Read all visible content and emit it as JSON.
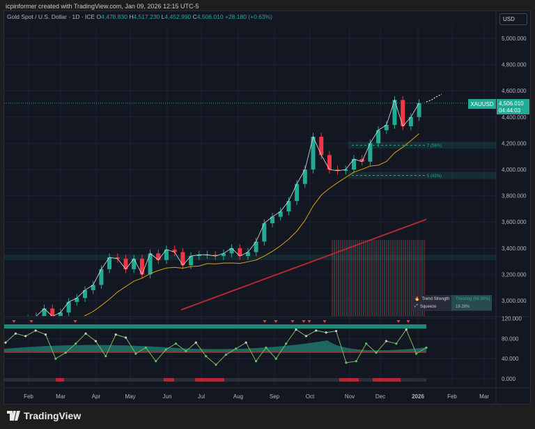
{
  "credit": "icpinformer created with TradingView.com, Jan 09, 2026 12:15 UTC-5",
  "legend": {
    "symbol": "Gold Spot / U.S. Dollar · 1D · ICE",
    "o_label": "O",
    "open": "4,478.830",
    "h_label": "H",
    "high": "4,517.230",
    "l_label": "L",
    "low": "4,452.990",
    "c_label": "C",
    "close": "4,506.010",
    "change": "+28.180 (+0.63%)"
  },
  "currency": "USD",
  "price_tag": {
    "ticker": "XAUUSD",
    "price": "4,506.010",
    "countdown": "04:44:03"
  },
  "levels": [
    {
      "label": "7 (58%)",
      "value": 4185
    },
    {
      "label": "5 (42%)",
      "value": 3955
    }
  ],
  "trend_box": {
    "row1_label": "Trend Strength",
    "row1_value": "Trending (66.99%)",
    "row2_label": "Squeeze",
    "row2_value": "19.28%"
  },
  "brand": "TradingView",
  "colors": {
    "up": "#22ab94",
    "down": "#f23645",
    "bg": "#131722"
  },
  "chart_data": {
    "type": "candlestick",
    "title": "Gold Spot / U.S. Dollar · 1D",
    "x_tick_labels": [
      "Feb",
      "Mar",
      "Apr",
      "May",
      "Jun",
      "Jul",
      "Aug",
      "Sep",
      "Oct",
      "Nov",
      "Dec",
      "2026",
      "Feb",
      "Mar"
    ],
    "y_tick_labels": [
      "5,000.000",
      "4,800.000",
      "4,600.000",
      "4,400.000",
      "4,200.000",
      "4,000.000",
      "3,800.000",
      "3,600.000",
      "3,400.000",
      "3,200.000",
      "3,000.000"
    ],
    "y_ticks": [
      5000,
      4800,
      4600,
      4400,
      4200,
      4000,
      3800,
      3600,
      3400,
      3200,
      3000
    ],
    "osc_tick_labels": [
      "120.000",
      "80.000",
      "40.000",
      "0.000"
    ],
    "osc_ticks": [
      120,
      80,
      40,
      0
    ],
    "ylim": [
      2900,
      5080
    ],
    "weekly_closes": [
      2690,
      2700,
      2770,
      2800,
      2860,
      2880,
      2940,
      2880,
      2910,
      2990,
      3020,
      3080,
      3120,
      3240,
      3330,
      3320,
      3240,
      3320,
      3200,
      3360,
      3310,
      3390,
      3370,
      3270,
      3340,
      3350,
      3350,
      3340,
      3360,
      3400,
      3340,
      3370,
      3450,
      3590,
      3640,
      3680,
      3760,
      3890,
      4000,
      4250,
      4110,
      4000,
      3990,
      4000,
      4080,
      4060,
      4200,
      4300,
      4340,
      4530,
      4330,
      4400,
      4506
    ],
    "ma200_end": 3620,
    "oscillator": [
      72,
      90,
      85,
      96,
      88,
      40,
      52,
      70,
      90,
      75,
      45,
      88,
      82,
      50,
      62,
      35,
      58,
      70,
      55,
      72,
      45,
      28,
      48,
      60,
      72,
      35,
      62,
      40,
      70,
      98,
      85,
      96,
      92,
      95,
      32,
      35,
      70,
      52,
      75,
      70,
      98,
      50,
      62
    ]
  }
}
